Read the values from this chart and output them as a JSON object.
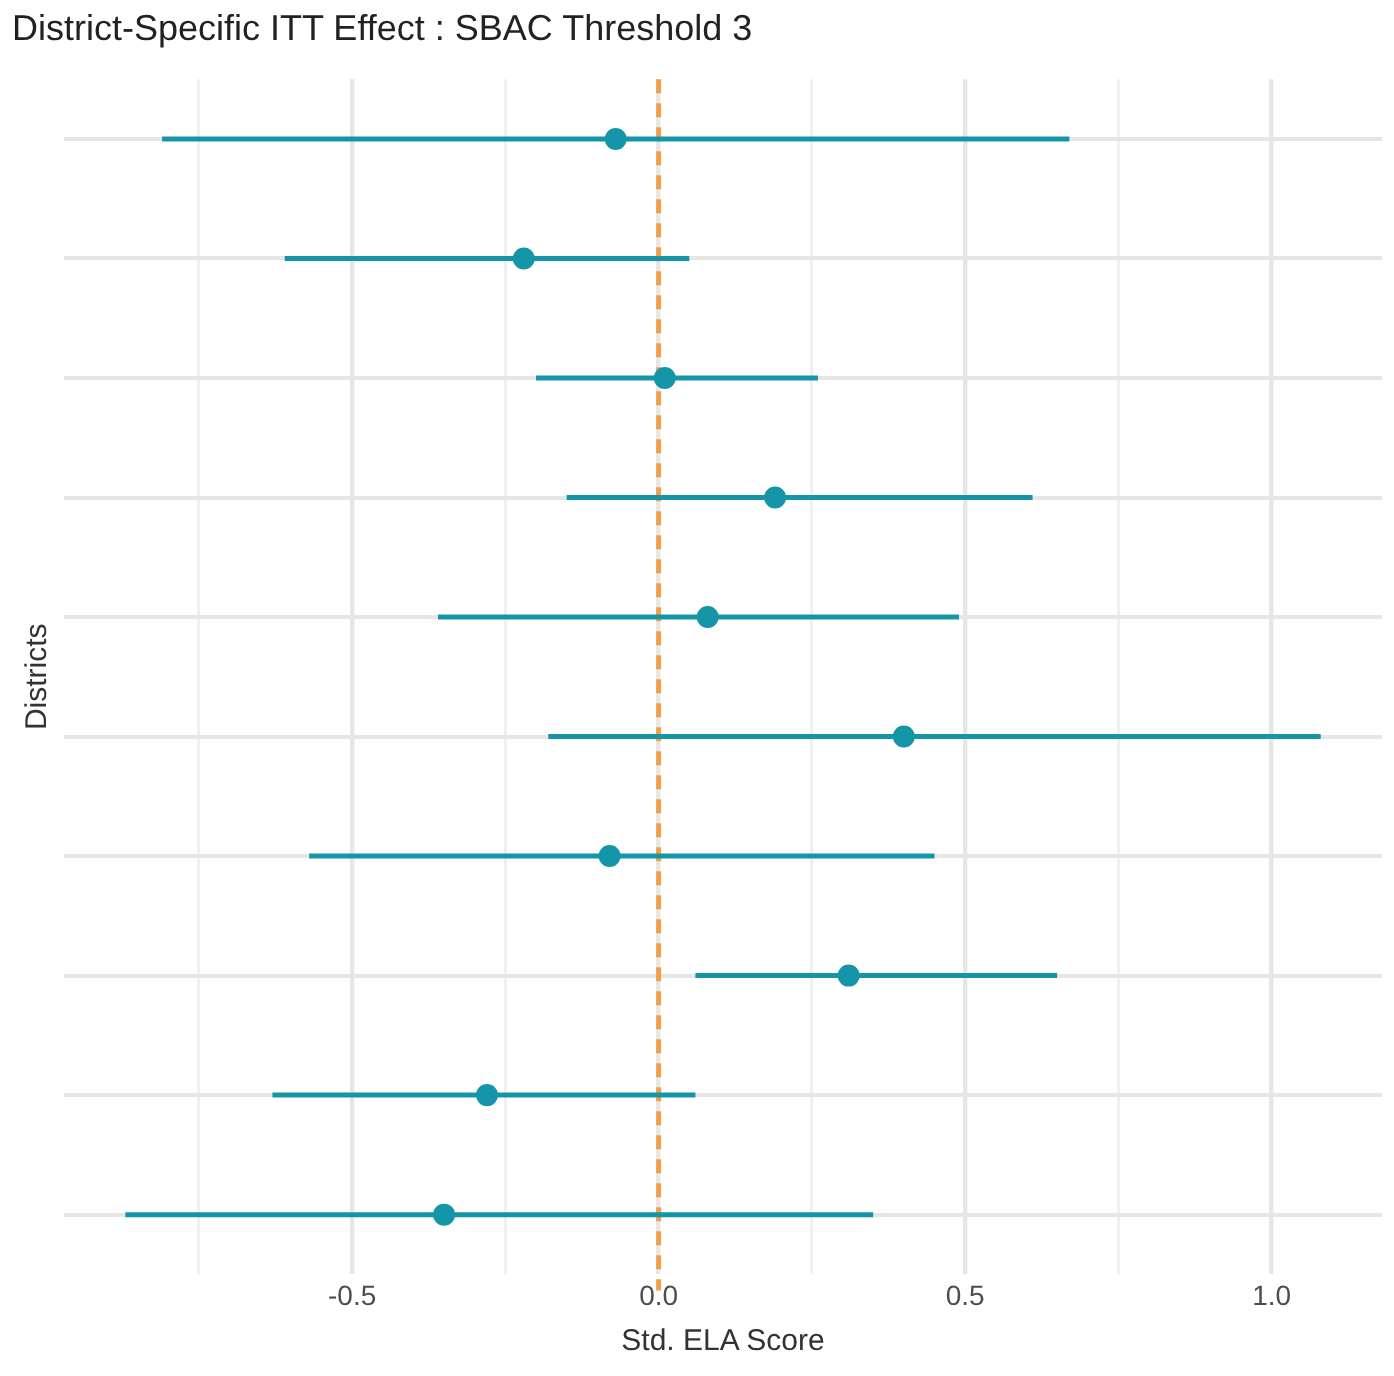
{
  "chart_data": {
    "type": "scatter",
    "orientation": "horizontal",
    "title": "District-Specific ITT Effect : SBAC Threshold 3",
    "xlabel": "Std. ELA Score",
    "ylabel": "Districts",
    "categories": [
      null,
      null,
      null,
      null,
      null,
      null,
      null,
      null,
      null,
      null
    ],
    "values": [
      -0.07,
      -0.22,
      0.01,
      0.19,
      0.08,
      0.4,
      -0.08,
      0.31,
      -0.28,
      -0.35
    ],
    "errors": [
      [
        -0.81,
        0.67
      ],
      [
        -0.61,
        0.05
      ],
      [
        -0.2,
        0.26
      ],
      [
        -0.15,
        0.61
      ],
      [
        -0.36,
        0.49
      ],
      [
        -0.18,
        1.08
      ],
      [
        -0.57,
        0.45
      ],
      [
        0.06,
        0.65
      ],
      [
        -0.63,
        0.06
      ],
      [
        -0.87,
        0.35
      ]
    ],
    "color": "#1595a8",
    "marker": "circle",
    "xlim": [
      -0.97,
      1.18
    ],
    "xticks": [
      {
        "value": -0.75,
        "label": null
      },
      {
        "value": -0.5,
        "label": "-0.5"
      },
      {
        "value": -0.25,
        "label": null
      },
      {
        "value": 0,
        "label": "0.0"
      },
      {
        "value": 0.25,
        "label": null
      },
      {
        "value": 0.5,
        "label": "0.5"
      },
      {
        "value": 0.75,
        "label": null
      },
      {
        "value": 1,
        "label": "1.0"
      }
    ],
    "ref_lines": [
      {
        "axis": "x",
        "value": 0,
        "color": "#f0a04b",
        "line_style": "dashed"
      }
    ],
    "grid": true,
    "tick_labels": "x",
    "legend": false
  }
}
